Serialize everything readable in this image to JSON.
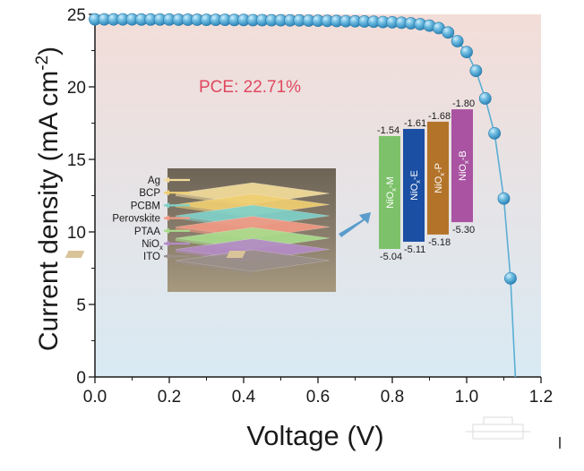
{
  "chart_data": {
    "type": "scatter",
    "xlabel": "Voltage (V)",
    "ylabel": {
      "main": "Current density (mA cm",
      "sup": "-2",
      "close": ")"
    },
    "xlim": [
      0.0,
      1.2
    ],
    "ylim": [
      0,
      25
    ],
    "xticks": [
      "0.0",
      "0.2",
      "0.4",
      "0.6",
      "0.8",
      "1.0",
      "1.2"
    ],
    "yticks": [
      "0",
      "5",
      "10",
      "15",
      "20",
      "25"
    ],
    "grid": false,
    "annotation": "PCE: 22.71%",
    "series": [
      {
        "style": "line+markers",
        "color": "#5aaed4",
        "points": [
          [
            0.0,
            24.65
          ],
          [
            0.025,
            24.65
          ],
          [
            0.05,
            24.65
          ],
          [
            0.075,
            24.65
          ],
          [
            0.1,
            24.65
          ],
          [
            0.125,
            24.64
          ],
          [
            0.15,
            24.64
          ],
          [
            0.175,
            24.64
          ],
          [
            0.2,
            24.64
          ],
          [
            0.225,
            24.63
          ],
          [
            0.25,
            24.63
          ],
          [
            0.275,
            24.63
          ],
          [
            0.3,
            24.62
          ],
          [
            0.325,
            24.62
          ],
          [
            0.35,
            24.62
          ],
          [
            0.375,
            24.61
          ],
          [
            0.4,
            24.61
          ],
          [
            0.425,
            24.6
          ],
          [
            0.45,
            24.6
          ],
          [
            0.475,
            24.59
          ],
          [
            0.5,
            24.59
          ],
          [
            0.525,
            24.58
          ],
          [
            0.55,
            24.58
          ],
          [
            0.575,
            24.57
          ],
          [
            0.6,
            24.56
          ],
          [
            0.625,
            24.55
          ],
          [
            0.65,
            24.54
          ],
          [
            0.675,
            24.53
          ],
          [
            0.7,
            24.52
          ],
          [
            0.725,
            24.51
          ],
          [
            0.75,
            24.49
          ],
          [
            0.775,
            24.47
          ],
          [
            0.8,
            24.45
          ],
          [
            0.825,
            24.42
          ],
          [
            0.85,
            24.38
          ],
          [
            0.875,
            24.32
          ],
          [
            0.9,
            24.22
          ],
          [
            0.925,
            24.05
          ],
          [
            0.95,
            23.75
          ],
          [
            0.975,
            23.15
          ],
          [
            1.0,
            22.4
          ],
          [
            1.025,
            21.1
          ],
          [
            1.05,
            19.2
          ],
          [
            1.075,
            16.8
          ],
          [
            1.1,
            12.3
          ],
          [
            1.118,
            6.8
          ],
          [
            1.131,
            0.0
          ]
        ],
        "marker_points": [
          [
            0.0,
            24.65
          ],
          [
            0.025,
            24.65
          ],
          [
            0.05,
            24.65
          ],
          [
            0.075,
            24.65
          ],
          [
            0.1,
            24.65
          ],
          [
            0.125,
            24.64
          ],
          [
            0.15,
            24.64
          ],
          [
            0.175,
            24.64
          ],
          [
            0.2,
            24.64
          ],
          [
            0.225,
            24.63
          ],
          [
            0.25,
            24.63
          ],
          [
            0.275,
            24.63
          ],
          [
            0.3,
            24.62
          ],
          [
            0.325,
            24.62
          ],
          [
            0.35,
            24.62
          ],
          [
            0.375,
            24.61
          ],
          [
            0.4,
            24.61
          ],
          [
            0.425,
            24.6
          ],
          [
            0.45,
            24.6
          ],
          [
            0.475,
            24.59
          ],
          [
            0.5,
            24.59
          ],
          [
            0.525,
            24.58
          ],
          [
            0.55,
            24.58
          ],
          [
            0.575,
            24.57
          ],
          [
            0.6,
            24.56
          ],
          [
            0.625,
            24.55
          ],
          [
            0.65,
            24.54
          ],
          [
            0.675,
            24.53
          ],
          [
            0.7,
            24.52
          ],
          [
            0.725,
            24.51
          ],
          [
            0.75,
            24.49
          ],
          [
            0.775,
            24.47
          ],
          [
            0.8,
            24.45
          ],
          [
            0.825,
            24.42
          ],
          [
            0.85,
            24.38
          ],
          [
            0.875,
            24.32
          ],
          [
            0.9,
            24.22
          ],
          [
            0.925,
            24.05
          ],
          [
            0.95,
            23.75
          ],
          [
            0.975,
            23.15
          ],
          [
            1.0,
            22.4
          ],
          [
            1.025,
            21.1
          ],
          [
            1.05,
            19.2
          ],
          [
            1.075,
            16.8
          ],
          [
            1.1,
            12.3
          ],
          [
            1.118,
            6.8
          ]
        ]
      }
    ]
  },
  "device_inset": {
    "layers": [
      {
        "label": "Ag",
        "sub": "",
        "color": "#f3dc9a"
      },
      {
        "label": "BCP",
        "sub": "",
        "color": "#f0cf72"
      },
      {
        "label": "PCBM",
        "sub": "",
        "color": "#7fd1c9"
      },
      {
        "label": "Perovskite",
        "sub": "",
        "color": "#f29a84"
      },
      {
        "label": "PTAA",
        "sub": "",
        "color": "#a9dd8d"
      },
      {
        "label": "NiO",
        "sub": "x",
        "color": "#b48cc6"
      },
      {
        "label": "ITO",
        "sub": "",
        "color": "#9b8f8a"
      }
    ]
  },
  "energy_diagram": {
    "bars": [
      {
        "name": "NiO",
        "sub": "x",
        "suffix": "-M",
        "top_label": "-1.54",
        "bottom_label": "-5.04",
        "color": "#7dc26a"
      },
      {
        "name": "NiO",
        "sub": "x",
        "suffix": "-E",
        "top_label": "-1.61",
        "bottom_label": "-5.11",
        "color": "#1a4fa3"
      },
      {
        "name": "NiO",
        "sub": "x",
        "suffix": "-P",
        "top_label": "-1.68",
        "bottom_label": "-5.18",
        "color": "#b3742a"
      },
      {
        "name": "NiO",
        "sub": "x",
        "suffix": "-B",
        "top_label": "-1.80",
        "bottom_label": "-5.30",
        "color": "#a953a2"
      }
    ]
  },
  "colors": {
    "bg_top": "#f3ddd8",
    "bg_bottom": "#d9eaf4",
    "curve": "#5aaed4",
    "annotation": "#e04860",
    "arrow": "#5a9ccc",
    "axis": "#1a1a1a"
  }
}
